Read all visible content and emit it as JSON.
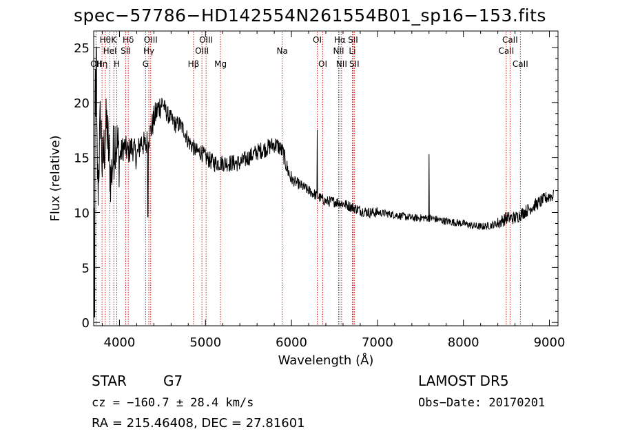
{
  "title": "spec−57786−HD142554N261554B01_sp16−153.fits",
  "footer": {
    "object_class": "STAR",
    "subclass": "G7",
    "survey": "LAMOST  DR5",
    "cz": "cz = −160.7 ± 28.4 km/s",
    "obs_date": "Obs−Date: 20170201",
    "radec": "RA = 215.46408, DEC =  27.81601"
  },
  "chart_data": {
    "type": "line",
    "xlabel": "Wavelength (Å)",
    "ylabel": "Flux (relative)",
    "xlim": [
      3700,
      9100
    ],
    "ylim": [
      -0.3,
      26.5
    ],
    "xticks": [
      4000,
      5000,
      6000,
      7000,
      8000,
      9000
    ],
    "yticks": [
      0,
      5,
      10,
      15,
      20,
      25
    ],
    "grid": false,
    "legend": "none",
    "colors": {
      "spectrum": "#000000",
      "line_markers": "#cc0000"
    },
    "spectrum_anchors": [
      [
        3700,
        9
      ],
      [
        3720,
        22
      ],
      [
        3750,
        12
      ],
      [
        3780,
        19
      ],
      [
        3800,
        14
      ],
      [
        3850,
        18
      ],
      [
        3900,
        13
      ],
      [
        3950,
        17
      ],
      [
        4000,
        15
      ],
      [
        4050,
        16
      ],
      [
        4100,
        15.5
      ],
      [
        4150,
        16
      ],
      [
        4200,
        15
      ],
      [
        4250,
        16.5
      ],
      [
        4300,
        16
      ],
      [
        4350,
        17
      ],
      [
        4400,
        18.5
      ],
      [
        4450,
        19.5
      ],
      [
        4500,
        20
      ],
      [
        4550,
        19
      ],
      [
        4600,
        18.5
      ],
      [
        4650,
        18
      ],
      [
        4700,
        18
      ],
      [
        4750,
        17.5
      ],
      [
        4800,
        16.5
      ],
      [
        4850,
        16
      ],
      [
        4900,
        15.5
      ],
      [
        4950,
        15.5
      ],
      [
        5000,
        15
      ],
      [
        5100,
        14.5
      ],
      [
        5200,
        14.5
      ],
      [
        5300,
        14.5
      ],
      [
        5400,
        14.5
      ],
      [
        5500,
        15
      ],
      [
        5600,
        15.5
      ],
      [
        5700,
        15.8
      ],
      [
        5800,
        16.2
      ],
      [
        5850,
        16
      ],
      [
        5900,
        15.5
      ],
      [
        5950,
        14
      ],
      [
        6000,
        13
      ],
      [
        6100,
        12.5
      ],
      [
        6200,
        12
      ],
      [
        6300,
        11.5
      ],
      [
        6400,
        11
      ],
      [
        6500,
        11
      ],
      [
        6600,
        10.8
      ],
      [
        6700,
        10.5
      ],
      [
        6800,
        10.2
      ],
      [
        6900,
        10
      ],
      [
        7000,
        10
      ],
      [
        7200,
        9.8
      ],
      [
        7400,
        9.5
      ],
      [
        7600,
        9.5
      ],
      [
        7800,
        9.2
      ],
      [
        8000,
        9
      ],
      [
        8100,
        8.8
      ],
      [
        8200,
        8.7
      ],
      [
        8300,
        8.8
      ],
      [
        8400,
        9
      ],
      [
        8500,
        9.5
      ],
      [
        8600,
        9.5
      ],
      [
        8700,
        10
      ],
      [
        8800,
        10.5
      ],
      [
        8900,
        11
      ],
      [
        9000,
        11.5
      ],
      [
        9050,
        11.5
      ]
    ],
    "spectrum_spikes": [
      {
        "x": 6300,
        "y": 17.5
      },
      {
        "x": 7600,
        "y": 15.3
      },
      {
        "x": 4330,
        "y": 9.6
      },
      {
        "x": 3730,
        "y": 25
      },
      {
        "x": 3710,
        "y": 0.5
      }
    ],
    "line_markers": [
      {
        "x": 3727,
        "label": "OII",
        "row": 3
      },
      {
        "x": 3797,
        "label": "Hη",
        "row": 3
      },
      {
        "x": 3835,
        "label": "Hθ",
        "row": 1
      },
      {
        "x": 3889,
        "label": "HeI",
        "row": 2
      },
      {
        "x": 3934,
        "label": "K",
        "row": 1
      },
      {
        "x": 3969,
        "label": "H",
        "row": 3
      },
      {
        "x": 4072,
        "label": "SII",
        "row": 2
      },
      {
        "x": 4102,
        "label": "Hδ",
        "row": 1
      },
      {
        "x": 4304,
        "label": "G",
        "row": 3
      },
      {
        "x": 4341,
        "label": "Hγ",
        "row": 2
      },
      {
        "x": 4363,
        "label": "OIII",
        "row": 1
      },
      {
        "x": 4861,
        "label": "Hβ",
        "row": 3
      },
      {
        "x": 4959,
        "label": "OIII",
        "row": 2
      },
      {
        "x": 5007,
        "label": "OIII",
        "row": 1
      },
      {
        "x": 5175,
        "label": "Mg",
        "row": 3
      },
      {
        "x": 5893,
        "label": "Na",
        "row": 2
      },
      {
        "x": 6300,
        "label": "OI",
        "row": 1
      },
      {
        "x": 6364,
        "label": "OI",
        "row": 3
      },
      {
        "x": 6548,
        "label": "NII",
        "row": 2
      },
      {
        "x": 6563,
        "label": "Hα",
        "row": 1
      },
      {
        "x": 6583,
        "label": "NII",
        "row": 3
      },
      {
        "x": 6708,
        "label": "Li",
        "row": 2
      },
      {
        "x": 6716,
        "label": "SII",
        "row": 1
      },
      {
        "x": 6731,
        "label": "SII",
        "row": 3
      },
      {
        "x": 8498,
        "label": "CaII",
        "row": 2
      },
      {
        "x": 8542,
        "label": "CaII",
        "row": 1
      },
      {
        "x": 8662,
        "label": "CaII",
        "row": 3
      }
    ]
  }
}
